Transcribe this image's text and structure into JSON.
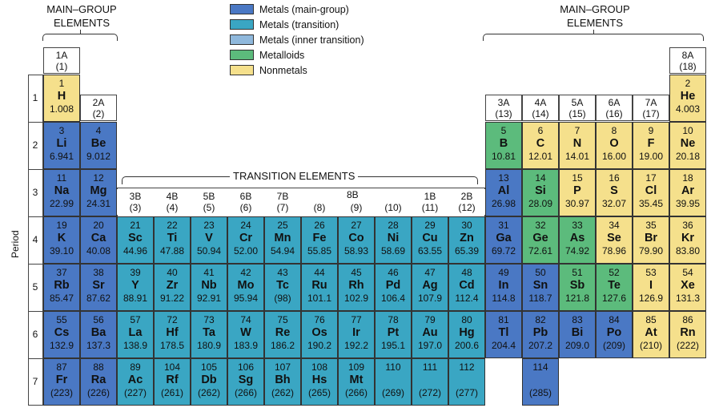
{
  "headers": {
    "main_group_left": [
      "MAIN–GROUP",
      "ELEMENTS"
    ],
    "main_group_right": [
      "MAIN–GROUP",
      "ELEMENTS"
    ],
    "transition": "TRANSITION ELEMENTS",
    "period_axis": "Period"
  },
  "legend": [
    {
      "label": "Metals (main-group)",
      "color": "#4a78c4"
    },
    {
      "label": "Metals (transition)",
      "color": "#3aa6c3"
    },
    {
      "label": "Metals (inner transition)",
      "color": "#8fb8dc"
    },
    {
      "label": "Metalloids",
      "color": "#5cbb7c"
    },
    {
      "label": "Nonmetals",
      "color": "#f5e08c"
    }
  ],
  "group_labels": {
    "g1": [
      "1A",
      "(1)"
    ],
    "g2": [
      "2A",
      "(2)"
    ],
    "g3": [
      "3B",
      "(3)"
    ],
    "g4": [
      "4B",
      "(4)"
    ],
    "g5": [
      "5B",
      "(5)"
    ],
    "g6": [
      "6B",
      "(6)"
    ],
    "g7": [
      "7B",
      "(7)"
    ],
    "g8b": "8B",
    "g8": [
      "",
      "(8)"
    ],
    "g9": [
      "",
      "(9)"
    ],
    "g10": [
      "",
      "(10)"
    ],
    "g11": [
      "1B",
      "(11)"
    ],
    "g12": [
      "2B",
      "(12)"
    ],
    "g13": [
      "3A",
      "(13)"
    ],
    "g14": [
      "4A",
      "(14)"
    ],
    "g15": [
      "5A",
      "(15)"
    ],
    "g16": [
      "6A",
      "(16)"
    ],
    "g17": [
      "7A",
      "(17)"
    ],
    "g18": [
      "8A",
      "(18)"
    ]
  },
  "periods": [
    "1",
    "2",
    "3",
    "4",
    "5",
    "6",
    "7"
  ],
  "elements": [
    {
      "z": "1",
      "s": "H",
      "m": "1.008",
      "p": 1,
      "g": 1,
      "c": "nonmetal"
    },
    {
      "z": "2",
      "s": "He",
      "m": "4.003",
      "p": 1,
      "g": 18,
      "c": "nonmetal"
    },
    {
      "z": "3",
      "s": "Li",
      "m": "6.941",
      "p": 2,
      "g": 1,
      "c": "main"
    },
    {
      "z": "4",
      "s": "Be",
      "m": "9.012",
      "p": 2,
      "g": 2,
      "c": "main"
    },
    {
      "z": "5",
      "s": "B",
      "m": "10.81",
      "p": 2,
      "g": 13,
      "c": "metalloid"
    },
    {
      "z": "6",
      "s": "C",
      "m": "12.01",
      "p": 2,
      "g": 14,
      "c": "nonmetal"
    },
    {
      "z": "7",
      "s": "N",
      "m": "14.01",
      "p": 2,
      "g": 15,
      "c": "nonmetal"
    },
    {
      "z": "8",
      "s": "O",
      "m": "16.00",
      "p": 2,
      "g": 16,
      "c": "nonmetal"
    },
    {
      "z": "9",
      "s": "F",
      "m": "19.00",
      "p": 2,
      "g": 17,
      "c": "nonmetal"
    },
    {
      "z": "10",
      "s": "Ne",
      "m": "20.18",
      "p": 2,
      "g": 18,
      "c": "nonmetal"
    },
    {
      "z": "11",
      "s": "Na",
      "m": "22.99",
      "p": 3,
      "g": 1,
      "c": "main"
    },
    {
      "z": "12",
      "s": "Mg",
      "m": "24.31",
      "p": 3,
      "g": 2,
      "c": "main"
    },
    {
      "z": "13",
      "s": "Al",
      "m": "26.98",
      "p": 3,
      "g": 13,
      "c": "main"
    },
    {
      "z": "14",
      "s": "Si",
      "m": "28.09",
      "p": 3,
      "g": 14,
      "c": "metalloid"
    },
    {
      "z": "15",
      "s": "P",
      "m": "30.97",
      "p": 3,
      "g": 15,
      "c": "nonmetal"
    },
    {
      "z": "16",
      "s": "S",
      "m": "32.07",
      "p": 3,
      "g": 16,
      "c": "nonmetal"
    },
    {
      "z": "17",
      "s": "Cl",
      "m": "35.45",
      "p": 3,
      "g": 17,
      "c": "nonmetal"
    },
    {
      "z": "18",
      "s": "Ar",
      "m": "39.95",
      "p": 3,
      "g": 18,
      "c": "nonmetal"
    },
    {
      "z": "19",
      "s": "K",
      "m": "39.10",
      "p": 4,
      "g": 1,
      "c": "main"
    },
    {
      "z": "20",
      "s": "Ca",
      "m": "40.08",
      "p": 4,
      "g": 2,
      "c": "main"
    },
    {
      "z": "21",
      "s": "Sc",
      "m": "44.96",
      "p": 4,
      "g": 3,
      "c": "transition"
    },
    {
      "z": "22",
      "s": "Ti",
      "m": "47.88",
      "p": 4,
      "g": 4,
      "c": "transition"
    },
    {
      "z": "23",
      "s": "V",
      "m": "50.94",
      "p": 4,
      "g": 5,
      "c": "transition"
    },
    {
      "z": "24",
      "s": "Cr",
      "m": "52.00",
      "p": 4,
      "g": 6,
      "c": "transition"
    },
    {
      "z": "25",
      "s": "Mn",
      "m": "54.94",
      "p": 4,
      "g": 7,
      "c": "transition"
    },
    {
      "z": "26",
      "s": "Fe",
      "m": "55.85",
      "p": 4,
      "g": 8,
      "c": "transition"
    },
    {
      "z": "27",
      "s": "Co",
      "m": "58.93",
      "p": 4,
      "g": 9,
      "c": "transition"
    },
    {
      "z": "28",
      "s": "Ni",
      "m": "58.69",
      "p": 4,
      "g": 10,
      "c": "transition"
    },
    {
      "z": "29",
      "s": "Cu",
      "m": "63.55",
      "p": 4,
      "g": 11,
      "c": "transition"
    },
    {
      "z": "30",
      "s": "Zn",
      "m": "65.39",
      "p": 4,
      "g": 12,
      "c": "transition"
    },
    {
      "z": "31",
      "s": "Ga",
      "m": "69.72",
      "p": 4,
      "g": 13,
      "c": "main"
    },
    {
      "z": "32",
      "s": "Ge",
      "m": "72.61",
      "p": 4,
      "g": 14,
      "c": "metalloid"
    },
    {
      "z": "33",
      "s": "As",
      "m": "74.92",
      "p": 4,
      "g": 15,
      "c": "metalloid"
    },
    {
      "z": "34",
      "s": "Se",
      "m": "78.96",
      "p": 4,
      "g": 16,
      "c": "nonmetal"
    },
    {
      "z": "35",
      "s": "Br",
      "m": "79.90",
      "p": 4,
      "g": 17,
      "c": "nonmetal"
    },
    {
      "z": "36",
      "s": "Kr",
      "m": "83.80",
      "p": 4,
      "g": 18,
      "c": "nonmetal"
    },
    {
      "z": "37",
      "s": "Rb",
      "m": "85.47",
      "p": 5,
      "g": 1,
      "c": "main"
    },
    {
      "z": "38",
      "s": "Sr",
      "m": "87.62",
      "p": 5,
      "g": 2,
      "c": "main"
    },
    {
      "z": "39",
      "s": "Y",
      "m": "88.91",
      "p": 5,
      "g": 3,
      "c": "transition"
    },
    {
      "z": "40",
      "s": "Zr",
      "m": "91.22",
      "p": 5,
      "g": 4,
      "c": "transition"
    },
    {
      "z": "41",
      "s": "Nb",
      "m": "92.91",
      "p": 5,
      "g": 5,
      "c": "transition"
    },
    {
      "z": "42",
      "s": "Mo",
      "m": "95.94",
      "p": 5,
      "g": 6,
      "c": "transition"
    },
    {
      "z": "43",
      "s": "Tc",
      "m": "(98)",
      "p": 5,
      "g": 7,
      "c": "transition"
    },
    {
      "z": "44",
      "s": "Ru",
      "m": "101.1",
      "p": 5,
      "g": 8,
      "c": "transition"
    },
    {
      "z": "45",
      "s": "Rh",
      "m": "102.9",
      "p": 5,
      "g": 9,
      "c": "transition"
    },
    {
      "z": "46",
      "s": "Pd",
      "m": "106.4",
      "p": 5,
      "g": 10,
      "c": "transition"
    },
    {
      "z": "47",
      "s": "Ag",
      "m": "107.9",
      "p": 5,
      "g": 11,
      "c": "transition"
    },
    {
      "z": "48",
      "s": "Cd",
      "m": "112.4",
      "p": 5,
      "g": 12,
      "c": "transition"
    },
    {
      "z": "49",
      "s": "In",
      "m": "114.8",
      "p": 5,
      "g": 13,
      "c": "main"
    },
    {
      "z": "50",
      "s": "Sn",
      "m": "118.7",
      "p": 5,
      "g": 14,
      "c": "main"
    },
    {
      "z": "51",
      "s": "Sb",
      "m": "121.8",
      "p": 5,
      "g": 15,
      "c": "metalloid"
    },
    {
      "z": "52",
      "s": "Te",
      "m": "127.6",
      "p": 5,
      "g": 16,
      "c": "metalloid"
    },
    {
      "z": "53",
      "s": "I",
      "m": "126.9",
      "p": 5,
      "g": 17,
      "c": "nonmetal"
    },
    {
      "z": "54",
      "s": "Xe",
      "m": "131.3",
      "p": 5,
      "g": 18,
      "c": "nonmetal"
    },
    {
      "z": "55",
      "s": "Cs",
      "m": "132.9",
      "p": 6,
      "g": 1,
      "c": "main"
    },
    {
      "z": "56",
      "s": "Ba",
      "m": "137.3",
      "p": 6,
      "g": 2,
      "c": "main"
    },
    {
      "z": "57",
      "s": "La",
      "m": "138.9",
      "p": 6,
      "g": 3,
      "c": "transition"
    },
    {
      "z": "72",
      "s": "Hf",
      "m": "178.5",
      "p": 6,
      "g": 4,
      "c": "transition"
    },
    {
      "z": "73",
      "s": "Ta",
      "m": "180.9",
      "p": 6,
      "g": 5,
      "c": "transition"
    },
    {
      "z": "74",
      "s": "W",
      "m": "183.9",
      "p": 6,
      "g": 6,
      "c": "transition"
    },
    {
      "z": "75",
      "s": "Re",
      "m": "186.2",
      "p": 6,
      "g": 7,
      "c": "transition"
    },
    {
      "z": "76",
      "s": "Os",
      "m": "190.2",
      "p": 6,
      "g": 8,
      "c": "transition"
    },
    {
      "z": "77",
      "s": "Ir",
      "m": "192.2",
      "p": 6,
      "g": 9,
      "c": "transition"
    },
    {
      "z": "78",
      "s": "Pt",
      "m": "195.1",
      "p": 6,
      "g": 10,
      "c": "transition"
    },
    {
      "z": "79",
      "s": "Au",
      "m": "197.0",
      "p": 6,
      "g": 11,
      "c": "transition"
    },
    {
      "z": "80",
      "s": "Hg",
      "m": "200.6",
      "p": 6,
      "g": 12,
      "c": "transition"
    },
    {
      "z": "81",
      "s": "Tl",
      "m": "204.4",
      "p": 6,
      "g": 13,
      "c": "main"
    },
    {
      "z": "82",
      "s": "Pb",
      "m": "207.2",
      "p": 6,
      "g": 14,
      "c": "main"
    },
    {
      "z": "83",
      "s": "Bi",
      "m": "209.0",
      "p": 6,
      "g": 15,
      "c": "main"
    },
    {
      "z": "84",
      "s": "Po",
      "m": "(209)",
      "p": 6,
      "g": 16,
      "c": "main"
    },
    {
      "z": "85",
      "s": "At",
      "m": "(210)",
      "p": 6,
      "g": 17,
      "c": "nonmetal"
    },
    {
      "z": "86",
      "s": "Rn",
      "m": "(222)",
      "p": 6,
      "g": 18,
      "c": "nonmetal"
    },
    {
      "z": "87",
      "s": "Fr",
      "m": "(223)",
      "p": 7,
      "g": 1,
      "c": "main"
    },
    {
      "z": "88",
      "s": "Ra",
      "m": "(226)",
      "p": 7,
      "g": 2,
      "c": "main"
    },
    {
      "z": "89",
      "s": "Ac",
      "m": "(227)",
      "p": 7,
      "g": 3,
      "c": "transition"
    },
    {
      "z": "104",
      "s": "Rf",
      "m": "(261)",
      "p": 7,
      "g": 4,
      "c": "transition"
    },
    {
      "z": "105",
      "s": "Db",
      "m": "(262)",
      "p": 7,
      "g": 5,
      "c": "transition"
    },
    {
      "z": "106",
      "s": "Sg",
      "m": "(266)",
      "p": 7,
      "g": 6,
      "c": "transition"
    },
    {
      "z": "107",
      "s": "Bh",
      "m": "(262)",
      "p": 7,
      "g": 7,
      "c": "transition"
    },
    {
      "z": "108",
      "s": "Hs",
      "m": "(265)",
      "p": 7,
      "g": 8,
      "c": "transition"
    },
    {
      "z": "109",
      "s": "Mt",
      "m": "(266)",
      "p": 7,
      "g": 9,
      "c": "transition"
    },
    {
      "z": "110",
      "s": "",
      "m": "(269)",
      "p": 7,
      "g": 10,
      "c": "transition"
    },
    {
      "z": "111",
      "s": "",
      "m": "(272)",
      "p": 7,
      "g": 11,
      "c": "transition"
    },
    {
      "z": "112",
      "s": "",
      "m": "(277)",
      "p": 7,
      "g": 12,
      "c": "transition"
    },
    {
      "z": "114",
      "s": "",
      "m": "(285)",
      "p": 7,
      "g": 14,
      "c": "main"
    }
  ]
}
